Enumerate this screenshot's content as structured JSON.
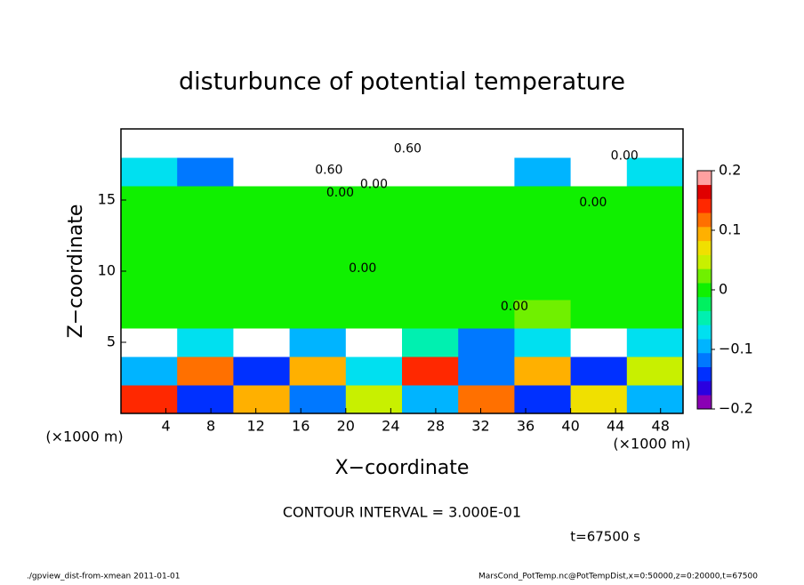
{
  "chart_data": {
    "type": "heatmap",
    "title": "disturbunce of potential temperature",
    "xlabel": "X−coordinate",
    "ylabel": "Z−coordinate",
    "xunit": "(×1000 m)",
    "yunit": "(×1000 m)",
    "xlim": [
      0,
      50
    ],
    "ylim": [
      0,
      20
    ],
    "xticks": [
      4,
      8,
      12,
      16,
      20,
      24,
      28,
      32,
      36,
      40,
      44,
      48
    ],
    "yticks": [
      5,
      10,
      15
    ],
    "x_edges": [
      0,
      5,
      10,
      15,
      20,
      25,
      30,
      35,
      40,
      45,
      50
    ],
    "z_edges": [
      0,
      2,
      4,
      6,
      8,
      10,
      12,
      14,
      16,
      18,
      20
    ],
    "z": [
      [
        0.15,
        -0.15,
        0.1,
        -0.12,
        0.05,
        -0.1,
        0.12,
        -0.15,
        0.08,
        -0.1
      ],
      [
        -0.1,
        0.12,
        -0.15,
        0.1,
        -0.08,
        0.15,
        -0.12,
        0.1,
        -0.15,
        0.05
      ],
      [
        -0.3,
        -0.08,
        -0.3,
        -0.1,
        0.3,
        -0.05,
        -0.12,
        -0.06,
        -0.3,
        -0.08
      ],
      [
        0.01,
        0,
        0,
        0,
        0,
        0,
        0.01,
        0.02,
        0,
        0.01
      ],
      [
        0.01,
        0,
        0,
        0,
        0,
        0,
        0,
        0,
        0,
        0
      ],
      [
        0,
        0,
        0,
        0,
        0,
        0,
        0,
        0,
        0,
        0
      ],
      [
        0,
        0,
        0,
        0,
        0,
        0,
        0,
        0,
        0,
        0
      ],
      [
        0,
        0,
        0,
        0,
        0,
        0,
        0,
        0,
        0,
        0
      ],
      [
        -0.08,
        -0.12,
        0.3,
        0.3,
        -0.3,
        0.3,
        0.3,
        -0.1,
        -0.3,
        -0.06
      ],
      [
        0.3,
        -0.3,
        0.3,
        0.3,
        0.3,
        -0.3,
        0.3,
        0.3,
        0.3,
        0.3
      ]
    ],
    "clim": [
      -0.2,
      0.2
    ],
    "cticks": [
      {
        "value": -0.2,
        "label": "−0.2"
      },
      {
        "value": -0.1,
        "label": "−0.1"
      },
      0,
      0.1,
      0.2
    ],
    "colormap": [
      "#8a00b4",
      "#2a00e0",
      "#0030ff",
      "#0078ff",
      "#00b4ff",
      "#00e0f0",
      "#00f0b0",
      "#00f060",
      "#10f000",
      "#70f000",
      "#c8f000",
      "#f0e000",
      "#ffb000",
      "#ff7000",
      "#ff2800",
      "#e00000",
      "#ffa0a0"
    ],
    "annotations": [
      {
        "text": "0.60",
        "x": 18.5,
        "z": 17.1
      },
      {
        "text": "0.60",
        "x": 25.5,
        "z": 18.6
      },
      {
        "text": "0.00",
        "x": 19.5,
        "z": 15.5
      },
      {
        "text": "0.00",
        "x": 22.5,
        "z": 16.1
      },
      {
        "text": "0.00",
        "x": 42,
        "z": 14.8
      },
      {
        "text": "0.00",
        "x": 44.8,
        "z": 18.1
      },
      {
        "text": "0.00",
        "x": 21.5,
        "z": 10.2
      },
      {
        "text": "0.00",
        "x": 35,
        "z": 7.5
      }
    ],
    "contour_interval": "CONTOUR INTERVAL = 3.000E-01",
    "time": "t=67500 s",
    "footer_left": "./gpview_dist-from-xmean  2011-01-01",
    "footer_right": "MarsCond_PotTemp.nc@PotTempDist,x=0:50000,z=0:20000,t=67500"
  }
}
